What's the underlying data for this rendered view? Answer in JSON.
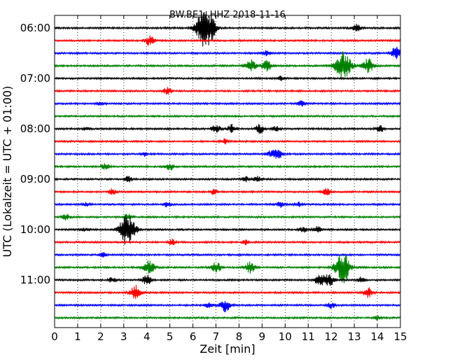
{
  "chart_data": {
    "type": "line",
    "title": "BW.BE1..HHZ 2018-11-16",
    "xlabel": "Zeit  [min]",
    "ylabel": "UTC (Lokalzeit = UTC + 01:00)",
    "xlim": [
      0,
      15
    ],
    "x_ticks": [
      "0",
      "1",
      "2",
      "3",
      "4",
      "5",
      "6",
      "7",
      "8",
      "9",
      "10",
      "11",
      "12",
      "13",
      "14",
      "15"
    ],
    "y_tick_labels": [
      "06:00",
      "07:00",
      "08:00",
      "09:00",
      "10:00",
      "11:00"
    ],
    "grid": "vertical dotted",
    "trace_colors": [
      "#000000",
      "#ff0000",
      "#0000ff",
      "#008000"
    ],
    "traces": [
      {
        "start": "06:00",
        "events": [
          [
            6.4,
            18
          ],
          [
            6.6,
            12
          ],
          [
            6.8,
            10
          ],
          [
            13.1,
            5
          ]
        ]
      },
      {
        "start": "06:15",
        "events": [
          [
            4.1,
            7
          ]
        ]
      },
      {
        "start": "06:30",
        "events": [
          [
            9.2,
            4
          ],
          [
            14.8,
            9
          ]
        ]
      },
      {
        "start": "06:45",
        "events": [
          [
            8.5,
            9
          ],
          [
            9.2,
            8
          ],
          [
            12.5,
            20
          ],
          [
            13.6,
            10
          ]
        ]
      },
      {
        "start": "07:00",
        "events": [
          [
            9.8,
            3
          ]
        ]
      },
      {
        "start": "07:15",
        "events": [
          [
            4.9,
            5
          ]
        ]
      },
      {
        "start": "07:30",
        "events": [
          [
            2.0,
            3
          ],
          [
            10.7,
            4
          ]
        ]
      },
      {
        "start": "07:45",
        "events": []
      },
      {
        "start": "08:00",
        "events": [
          [
            1.4,
            3
          ],
          [
            7.0,
            6
          ],
          [
            7.7,
            6
          ],
          [
            8.9,
            6
          ],
          [
            9.6,
            4
          ],
          [
            14.1,
            5
          ]
        ]
      },
      {
        "start": "08:15",
        "events": [
          [
            7.4,
            4
          ]
        ]
      },
      {
        "start": "08:30",
        "events": [
          [
            3.9,
            3
          ],
          [
            9.4,
            5
          ],
          [
            9.7,
            6
          ]
        ]
      },
      {
        "start": "08:45",
        "events": [
          [
            2.2,
            5
          ],
          [
            5.0,
            5
          ]
        ]
      },
      {
        "start": "09:00",
        "events": [
          [
            3.2,
            4
          ],
          [
            8.3,
            4
          ],
          [
            8.8,
            4
          ]
        ]
      },
      {
        "start": "09:15",
        "events": [
          [
            2.5,
            4
          ],
          [
            6.9,
            4
          ],
          [
            11.8,
            5
          ]
        ]
      },
      {
        "start": "09:30",
        "events": [
          [
            1.4,
            3
          ],
          [
            4.9,
            4
          ],
          [
            9.8,
            4
          ],
          [
            10.6,
            3
          ]
        ]
      },
      {
        "start": "09:45",
        "events": [
          [
            0.5,
            4
          ],
          [
            3.2,
            5
          ]
        ]
      },
      {
        "start": "10:00",
        "events": [
          [
            1.3,
            3
          ],
          [
            3.0,
            9
          ],
          [
            3.2,
            18
          ],
          [
            10.8,
            4
          ],
          [
            11.4,
            4
          ]
        ]
      },
      {
        "start": "10:15",
        "events": [
          [
            5.1,
            4
          ],
          [
            8.3,
            3
          ]
        ]
      },
      {
        "start": "10:30",
        "events": [
          [
            2.1,
            3
          ]
        ]
      },
      {
        "start": "10:45",
        "events": [
          [
            4.1,
            10
          ],
          [
            7.0,
            8
          ],
          [
            8.5,
            8
          ],
          [
            12.4,
            14
          ],
          [
            12.6,
            12
          ]
        ]
      },
      {
        "start": "11:00",
        "events": [
          [
            2.5,
            4
          ],
          [
            4.0,
            7
          ],
          [
            11.5,
            8
          ],
          [
            11.9,
            9
          ],
          [
            13.3,
            4
          ]
        ]
      },
      {
        "start": "11:15",
        "events": [
          [
            3.5,
            10
          ],
          [
            13.6,
            7
          ]
        ]
      },
      {
        "start": "11:30",
        "events": [
          [
            6.7,
            4
          ],
          [
            7.4,
            9
          ],
          [
            12.0,
            4
          ]
        ]
      },
      {
        "start": "11:45",
        "events": [
          [
            14.0,
            3
          ]
        ]
      }
    ]
  }
}
